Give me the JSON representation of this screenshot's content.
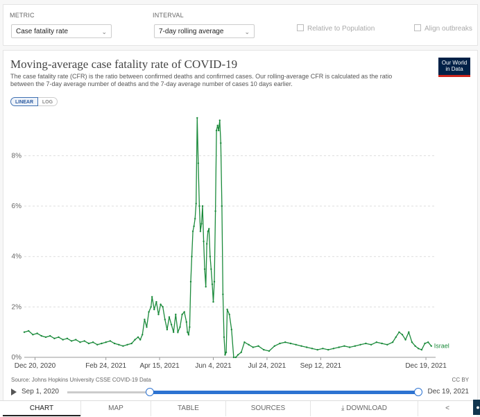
{
  "controls": {
    "metric_label": "METRIC",
    "metric_value": "Case fatality rate",
    "interval_label": "INTERVAL",
    "interval_value": "7-day rolling average",
    "relative_label": "Relative to Population",
    "align_label": "Align outbreaks"
  },
  "header": {
    "title": "Moving-average case fatality rate of COVID-19",
    "subtitle": "The case fatality rate (CFR) is the ratio between confirmed deaths and confirmed cases. Our rolling-average CFR is calculated as the ratio between the 7-day average number of deaths and the 7-day average number of cases 10 days earlier.",
    "logo_line1": "Our World",
    "logo_line2": "in Data",
    "scale_linear": "LINEAR",
    "scale_log": "LOG"
  },
  "footer": {
    "source": "Source: Johns Hopkins University CSSE COVID-19 Data",
    "license": "CC BY",
    "timeline_start": "Sep 1, 2020",
    "timeline_end": "Dec 19, 2021"
  },
  "tabs": [
    {
      "label": "CHART"
    },
    {
      "label": "MAP"
    },
    {
      "label": "TABLE"
    },
    {
      "label": "SOURCES"
    },
    {
      "label": "DOWNLOAD"
    },
    {
      "label": "<"
    }
  ],
  "colors": {
    "series": "#1a8a3a",
    "grid": "#dddddd",
    "accent": "#2d73d1"
  },
  "chart_data": {
    "type": "line",
    "xlabel": "",
    "ylabel": "",
    "ylim": [
      0,
      9.8
    ],
    "xlim": [
      "2020-12-10",
      "2021-12-28"
    ],
    "yticks": [
      0,
      2,
      4,
      6,
      8
    ],
    "ytick_labels": [
      "0%",
      "2%",
      "4%",
      "6%",
      "8%"
    ],
    "xticks": [
      "2020-12-20",
      "2021-02-24",
      "2021-04-15",
      "2021-06-04",
      "2021-07-24",
      "2021-09-12",
      "2021-12-19"
    ],
    "xtick_labels": [
      "Dec 20, 2020",
      "Feb 24, 2021",
      "Apr 15, 2021",
      "Jun 4, 2021",
      "Jul 24, 2021",
      "Sep 12, 2021",
      "Dec 19, 2021"
    ],
    "grid": "horizontal-dashed",
    "series": [
      {
        "name": "Israel",
        "x": [
          "2020-12-10",
          "2020-12-14",
          "2020-12-18",
          "2020-12-22",
          "2020-12-26",
          "2020-12-30",
          "2021-01-03",
          "2021-01-07",
          "2021-01-11",
          "2021-01-15",
          "2021-01-19",
          "2021-01-23",
          "2021-01-27",
          "2021-01-31",
          "2021-02-04",
          "2021-02-08",
          "2021-02-12",
          "2021-02-16",
          "2021-02-20",
          "2021-02-24",
          "2021-02-28",
          "2021-03-04",
          "2021-03-08",
          "2021-03-12",
          "2021-03-16",
          "2021-03-20",
          "2021-03-23",
          "2021-03-26",
          "2021-03-28",
          "2021-03-30",
          "2021-04-01",
          "2021-04-03",
          "2021-04-05",
          "2021-04-07",
          "2021-04-08",
          "2021-04-10",
          "2021-04-12",
          "2021-04-14",
          "2021-04-16",
          "2021-04-18",
          "2021-04-20",
          "2021-04-22",
          "2021-04-24",
          "2021-04-26",
          "2021-04-28",
          "2021-04-30",
          "2021-05-02",
          "2021-05-04",
          "2021-05-06",
          "2021-05-08",
          "2021-05-10",
          "2021-05-11",
          "2021-05-12",
          "2021-05-13",
          "2021-05-14",
          "2021-05-15",
          "2021-05-16",
          "2021-05-17",
          "2021-05-18",
          "2021-05-19",
          "2021-05-20",
          "2021-05-21",
          "2021-05-22",
          "2021-05-23",
          "2021-05-24",
          "2021-05-25",
          "2021-05-26",
          "2021-05-27",
          "2021-05-28",
          "2021-05-29",
          "2021-05-30",
          "2021-05-31",
          "2021-06-01",
          "2021-06-02",
          "2021-06-03",
          "2021-06-04",
          "2021-06-05",
          "2021-06-06",
          "2021-06-07",
          "2021-06-08",
          "2021-06-09",
          "2021-06-10",
          "2021-06-11",
          "2021-06-12",
          "2021-06-13",
          "2021-06-14",
          "2021-06-15",
          "2021-06-16",
          "2021-06-17",
          "2021-06-19",
          "2021-06-21",
          "2021-06-23",
          "2021-06-25",
          "2021-06-27",
          "2021-06-30",
          "2021-07-03",
          "2021-07-07",
          "2021-07-11",
          "2021-07-16",
          "2021-07-21",
          "2021-07-26",
          "2021-07-31",
          "2021-08-05",
          "2021-08-10",
          "2021-08-15",
          "2021-08-20",
          "2021-08-25",
          "2021-08-30",
          "2021-09-04",
          "2021-09-09",
          "2021-09-14",
          "2021-09-19",
          "2021-09-24",
          "2021-09-29",
          "2021-10-04",
          "2021-10-09",
          "2021-10-14",
          "2021-10-19",
          "2021-10-24",
          "2021-10-29",
          "2021-11-03",
          "2021-11-08",
          "2021-11-13",
          "2021-11-18",
          "2021-11-21",
          "2021-11-24",
          "2021-11-27",
          "2021-11-30",
          "2021-12-03",
          "2021-12-06",
          "2021-12-09",
          "2021-12-12",
          "2021-12-15",
          "2021-12-18",
          "2021-12-21",
          "2021-12-24"
        ],
        "values": [
          1.0,
          1.05,
          0.9,
          0.95,
          0.85,
          0.8,
          0.85,
          0.75,
          0.8,
          0.7,
          0.75,
          0.65,
          0.7,
          0.6,
          0.65,
          0.55,
          0.6,
          0.5,
          0.55,
          0.6,
          0.65,
          0.55,
          0.5,
          0.45,
          0.5,
          0.55,
          0.7,
          0.8,
          0.7,
          0.9,
          1.5,
          1.2,
          1.8,
          2.0,
          2.4,
          1.9,
          2.2,
          1.7,
          2.1,
          2.0,
          1.5,
          1.1,
          1.6,
          1.3,
          1.0,
          1.7,
          1.0,
          1.2,
          1.7,
          1.8,
          1.4,
          1.0,
          0.9,
          1.2,
          3.0,
          4.0,
          5.0,
          5.2,
          5.5,
          6.1,
          9.5,
          7.7,
          6.0,
          5.0,
          5.3,
          6.0,
          4.6,
          3.5,
          2.8,
          4.5,
          5.0,
          5.1,
          4.0,
          3.5,
          2.9,
          2.2,
          3.0,
          5.8,
          9.0,
          9.2,
          9.0,
          9.4,
          8.5,
          6.0,
          2.5,
          0.8,
          0.1,
          0.2,
          1.9,
          1.7,
          1.1,
          0.0,
          0.0,
          0.1,
          0.2,
          0.6,
          0.5,
          0.4,
          0.45,
          0.3,
          0.25,
          0.45,
          0.55,
          0.6,
          0.55,
          0.5,
          0.45,
          0.4,
          0.35,
          0.3,
          0.35,
          0.3,
          0.35,
          0.4,
          0.45,
          0.4,
          0.45,
          0.5,
          0.55,
          0.5,
          0.6,
          0.55,
          0.5,
          0.6,
          0.8,
          1.0,
          0.9,
          0.7,
          1.0,
          0.6,
          0.45,
          0.35,
          0.3,
          0.55,
          0.6,
          0.45
        ]
      }
    ]
  }
}
